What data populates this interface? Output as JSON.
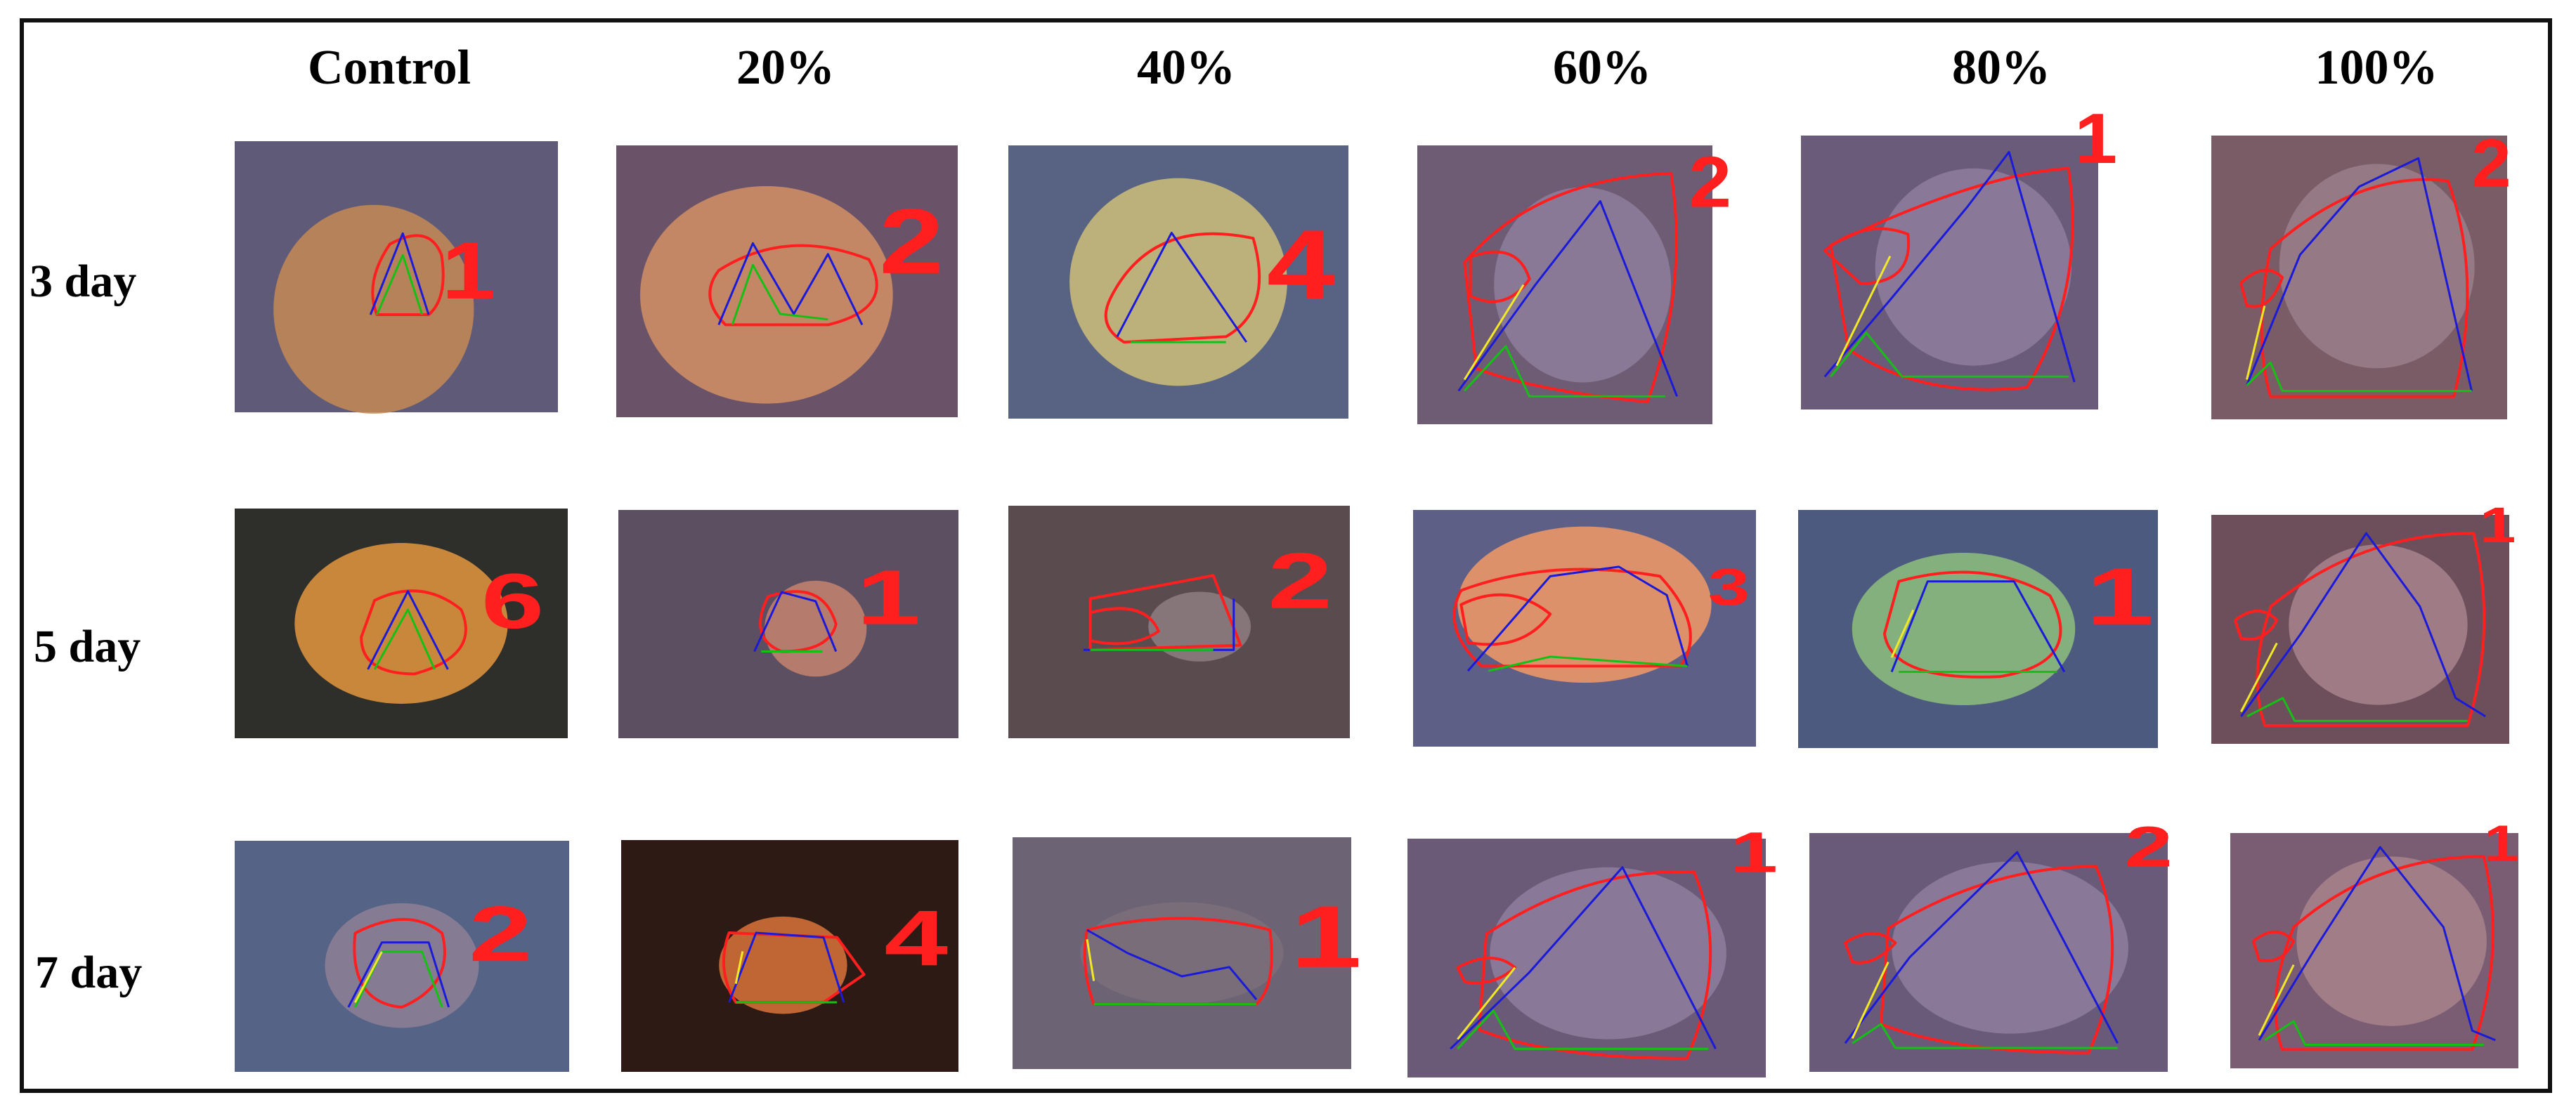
{
  "columns": [
    "Control",
    "20%",
    "40%",
    "60%",
    "80%",
    "100%"
  ],
  "rows": [
    "3 day",
    "5 day",
    "7 day"
  ],
  "cells": [
    [
      {
        "bg": "#5f5a78",
        "label": "1"
      },
      {
        "bg": "#6a5368",
        "label": "2"
      },
      {
        "bg": "#586282",
        "label": "4"
      },
      {
        "bg": "#6e5c74",
        "label": "2"
      },
      {
        "bg": "#6b5b7b",
        "label": "1"
      },
      {
        "bg": "#7a5c66",
        "label": "2"
      }
    ],
    [
      {
        "bg": "#2e2e2a",
        "label": "6"
      },
      {
        "bg": "#5d4f62",
        "label": "1"
      },
      {
        "bg": "#5a4b4e",
        "label": "2"
      },
      {
        "bg": "#5d5f86",
        "label": "3"
      },
      {
        "bg": "#4d5a80",
        "label": "1"
      },
      {
        "bg": "#6d4f5c",
        "label": "1"
      }
    ],
    [
      {
        "bg": "#546386",
        "label": "2"
      },
      {
        "bg": "#2e1a14",
        "label": "4"
      },
      {
        "bg": "#6c6474",
        "label": "1"
      },
      {
        "bg": "#6a5a78",
        "label": "1"
      },
      {
        "bg": "#6a5a7a",
        "label": "2"
      },
      {
        "bg": "#7a5d73",
        "label": "1"
      }
    ]
  ],
  "colors": {
    "outline": "#ff1f1f",
    "profile": "#1a1ad8",
    "baseline": "#15c015",
    "edge": "#f2e82a",
    "frame": "#111111"
  }
}
